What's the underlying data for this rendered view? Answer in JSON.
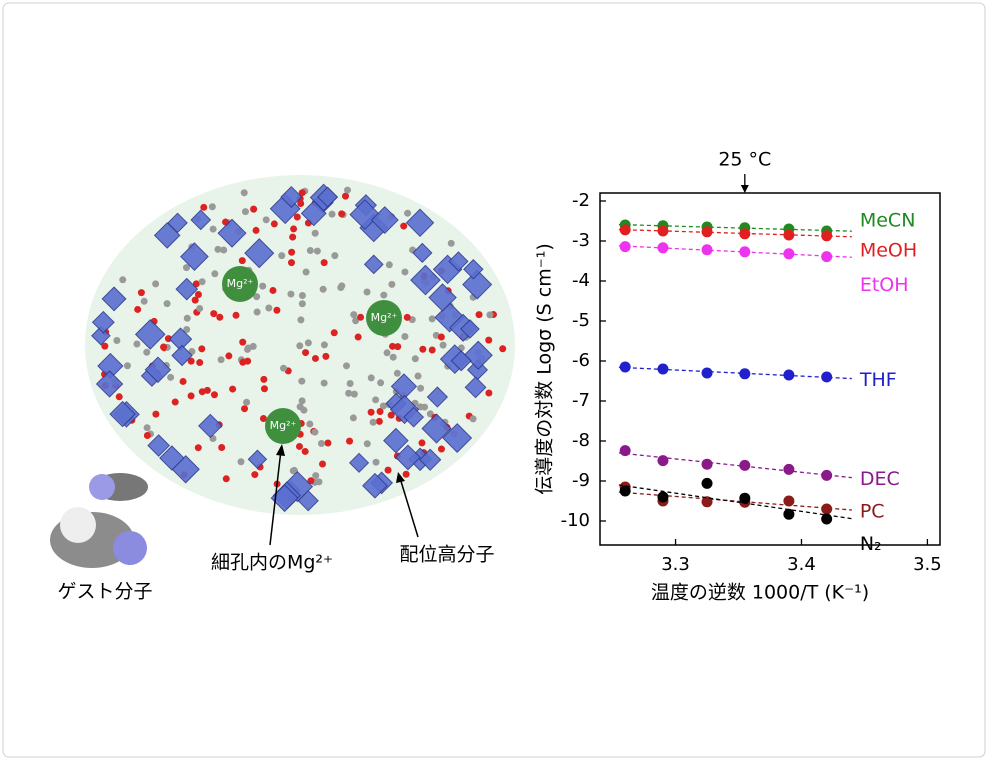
{
  "illustration": {
    "ion_labels": [
      "Mg²⁺",
      "Mg²⁺",
      "Mg²⁺"
    ],
    "pore_label": "細孔内のMg²⁺",
    "polymer_label": "配位高分子",
    "guest_label": "ゲスト分子"
  },
  "chart_data": {
    "type": "scatter",
    "annotation": "25 °C",
    "annotation_x": 3.355,
    "xlabel": "温度の逆数 1000/T (K⁻¹)",
    "ylabel": "伝導度の対数 Logσ (S cm⁻¹)",
    "x": [
      3.26,
      3.29,
      3.325,
      3.355,
      3.39,
      3.42
    ],
    "series": [
      {
        "name": "MeCN",
        "color": "#1f8a1f",
        "values": [
          -2.6,
          -2.62,
          -2.65,
          -2.67,
          -2.7,
          -2.75
        ]
      },
      {
        "name": "MeOH",
        "color": "#e02020",
        "values": [
          -2.72,
          -2.75,
          -2.77,
          -2.82,
          -2.85,
          -2.87
        ]
      },
      {
        "name": "EtOH",
        "color": "#ee33ee",
        "values": [
          -3.14,
          -3.17,
          -3.22,
          -3.27,
          -3.32,
          -3.39
        ]
      },
      {
        "name": "THF",
        "color": "#2020cc",
        "values": [
          -6.15,
          -6.2,
          -6.3,
          -6.32,
          -6.35,
          -6.4
        ]
      },
      {
        "name": "DEC",
        "color": "#8a1a8a",
        "values": [
          -8.24,
          -8.49,
          -8.58,
          -8.61,
          -8.71,
          -8.86
        ]
      },
      {
        "name": "PC",
        "color": "#8b1a1a",
        "values": [
          -9.15,
          -9.5,
          -9.52,
          -9.53,
          -9.5,
          -9.7
        ]
      },
      {
        "name": "N₂",
        "color": "#000000",
        "values": [
          -9.25,
          -9.4,
          -9.06,
          -9.43,
          -9.83,
          -9.95
        ]
      }
    ],
    "xlim": [
      3.24,
      3.51
    ],
    "ylim": [
      -10.6,
      -1.8
    ],
    "xticks": [
      3.3,
      3.4,
      3.5
    ],
    "yticks": [
      -2,
      -3,
      -4,
      -5,
      -6,
      -7,
      -8,
      -9,
      -10
    ]
  }
}
